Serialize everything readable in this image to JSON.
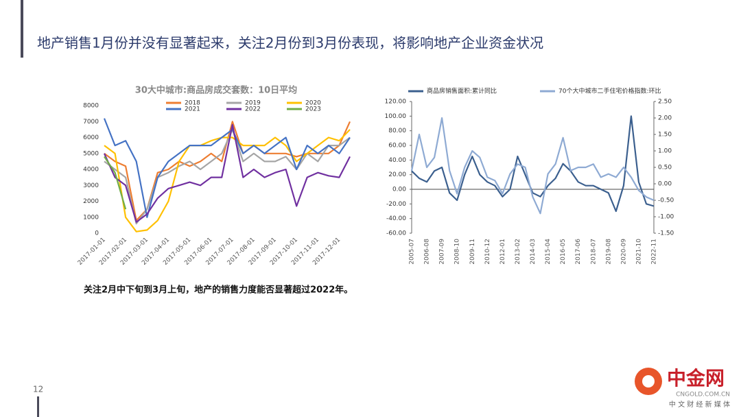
{
  "slide": {
    "title": "地产销售1月份并没有显著起来，关注2月份到3月份表现，将影响地产企业资金状况",
    "caption": "关注2月中下旬到3月上旬，地产的销售力度能否显著超过2022年。",
    "page": "12",
    "logo": "中金网",
    "logo_url": "CNGOLD.COM.CN",
    "logo_sub": "中 文 财 经 新 媒 体"
  },
  "chart_data": [
    {
      "type": "line",
      "title": "30大中城市:商品房成交套数：10日平均",
      "legend": "top",
      "categories": [
        "2017-01-01",
        null,
        "2017-02-01",
        null,
        "2017-03-01",
        null,
        "2017-04-01",
        null,
        "2017-05-01",
        null,
        "2017-06-01",
        null,
        "2017-07-01",
        null,
        "2017-08-01",
        null,
        "2017-09-01",
        null,
        "2017-10-01",
        null,
        "2017-11-01",
        null,
        "2017-12-01",
        null
      ],
      "ylim": [
        0,
        8000
      ],
      "yticks": [
        0,
        1000,
        2000,
        3000,
        4000,
        5000,
        6000,
        7000,
        8000
      ],
      "series": [
        {
          "name": "2018",
          "color": "#ed7d31",
          "values": [
            5000,
            4500,
            4200,
            800,
            1500,
            3800,
            4000,
            4500,
            4200,
            4500,
            5000,
            4500,
            7000,
            5000,
            5500,
            5000,
            5000,
            5000,
            4800,
            5000,
            5000,
            5000,
            5500,
            7000
          ]
        },
        {
          "name": "2019",
          "color": "#a5a5a5",
          "values": [
            4500,
            4000,
            3500,
            600,
            1500,
            3500,
            3800,
            4200,
            4500,
            4000,
            4500,
            5000,
            6500,
            4500,
            5000,
            4500,
            4500,
            4800,
            4000,
            5000,
            4500,
            5500,
            5500,
            6000
          ]
        },
        {
          "name": "2020",
          "color": "#ffc000",
          "values": [
            5500,
            5000,
            1000,
            100,
            200,
            800,
            2000,
            4500,
            5500,
            5500,
            5800,
            6000,
            6000,
            5500,
            5500,
            5500,
            6000,
            5500,
            4500,
            5000,
            5500,
            6000,
            5800,
            6500
          ]
        },
        {
          "name": "2021",
          "color": "#4472c4",
          "values": [
            7200,
            5500,
            5800,
            4500,
            1000,
            3500,
            4500,
            5000,
            5500,
            5500,
            5500,
            6000,
            6500,
            5000,
            5500,
            5000,
            5500,
            6000,
            4000,
            5500,
            5000,
            5500,
            5000,
            6000
          ]
        },
        {
          "name": "2022",
          "color": "#7030a0",
          "values": [
            5000,
            3500,
            3000,
            700,
            1200,
            2200,
            2800,
            3000,
            3200,
            3000,
            3500,
            3500,
            6800,
            3500,
            4000,
            3500,
            3800,
            4000,
            1700,
            3500,
            3800,
            3600,
            3500,
            4800
          ]
        },
        {
          "name": "2023",
          "color": "#70ad47",
          "values": [
            4800,
            3800,
            1500,
            null,
            null,
            null,
            null,
            null,
            null,
            null,
            null,
            null,
            null,
            null,
            null,
            null,
            null,
            null,
            null,
            null,
            null,
            null,
            null,
            null
          ]
        }
      ]
    },
    {
      "type": "line",
      "legend": "top",
      "categories": [
        "2005-07",
        null,
        "2006-08",
        null,
        "2007-09",
        null,
        "2008-10",
        null,
        "2009-11",
        null,
        "2010-12",
        null,
        "2012-01",
        null,
        "2013-02",
        null,
        "2014-03",
        null,
        "2015-04",
        null,
        "2016-05",
        null,
        "2017-06",
        null,
        "2018-07",
        null,
        "2019-08",
        null,
        "2020-09",
        null,
        "2021-10",
        null,
        "2022-11"
      ],
      "ylim": [
        -60,
        120
      ],
      "yticks": [
        {
          "value": -60,
          "label": "-60.00"
        },
        {
          "value": -40,
          "label": "-40.00"
        },
        {
          "value": -20,
          "label": "-20.00"
        },
        {
          "value": 0,
          "label": "0.00"
        },
        {
          "value": 20,
          "label": "20.00"
        },
        {
          "value": 40,
          "label": "40.00"
        },
        {
          "value": 60,
          "label": "60.00"
        },
        {
          "value": 80,
          "label": "80.00"
        },
        {
          "value": 100,
          "label": "100.00"
        },
        {
          "value": 120,
          "label": "120.00"
        }
      ],
      "y2lim": [
        -1.5,
        2.5
      ],
      "y2ticks": [
        {
          "value": -1.5,
          "label": "-1.50"
        },
        {
          "value": -1,
          "label": "-1.00"
        },
        {
          "value": -0.5,
          "label": "-0.50"
        },
        {
          "value": 0,
          "label": "0.00"
        },
        {
          "value": 0.5,
          "label": "0.50"
        },
        {
          "value": 1,
          "label": "1.00"
        },
        {
          "value": 1.5,
          "label": "1.50"
        },
        {
          "value": 2,
          "label": "2.00"
        },
        {
          "value": 2.5,
          "label": "2.50"
        }
      ],
      "series": [
        {
          "name": "商品房销售面积:累计同比",
          "color": "#3b5f8e",
          "values": [
            25,
            15,
            10,
            25,
            30,
            -5,
            -15,
            20,
            45,
            20,
            10,
            5,
            -10,
            0,
            45,
            20,
            -5,
            -10,
            5,
            15,
            35,
            25,
            10,
            5,
            5,
            0,
            -5,
            -30,
            5,
            100,
            10,
            -20,
            -23
          ]
        },
        {
          "name": "70个大中城市二手住宅价格指数:环比",
          "color": "#8eaad3",
          "axis": "y2",
          "values": [
            0.4,
            1.5,
            0.5,
            0.8,
            2.0,
            0.4,
            -0.3,
            0.5,
            1.0,
            0.8,
            0.2,
            0.1,
            -0.3,
            0.3,
            0.6,
            0.5,
            -0.4,
            -0.9,
            0.3,
            0.6,
            1.4,
            0.4,
            0.5,
            0.5,
            0.6,
            0.2,
            0.3,
            0.2,
            0.5,
            0.2,
            -0.2,
            -0.4,
            -0.5
          ]
        }
      ]
    }
  ]
}
